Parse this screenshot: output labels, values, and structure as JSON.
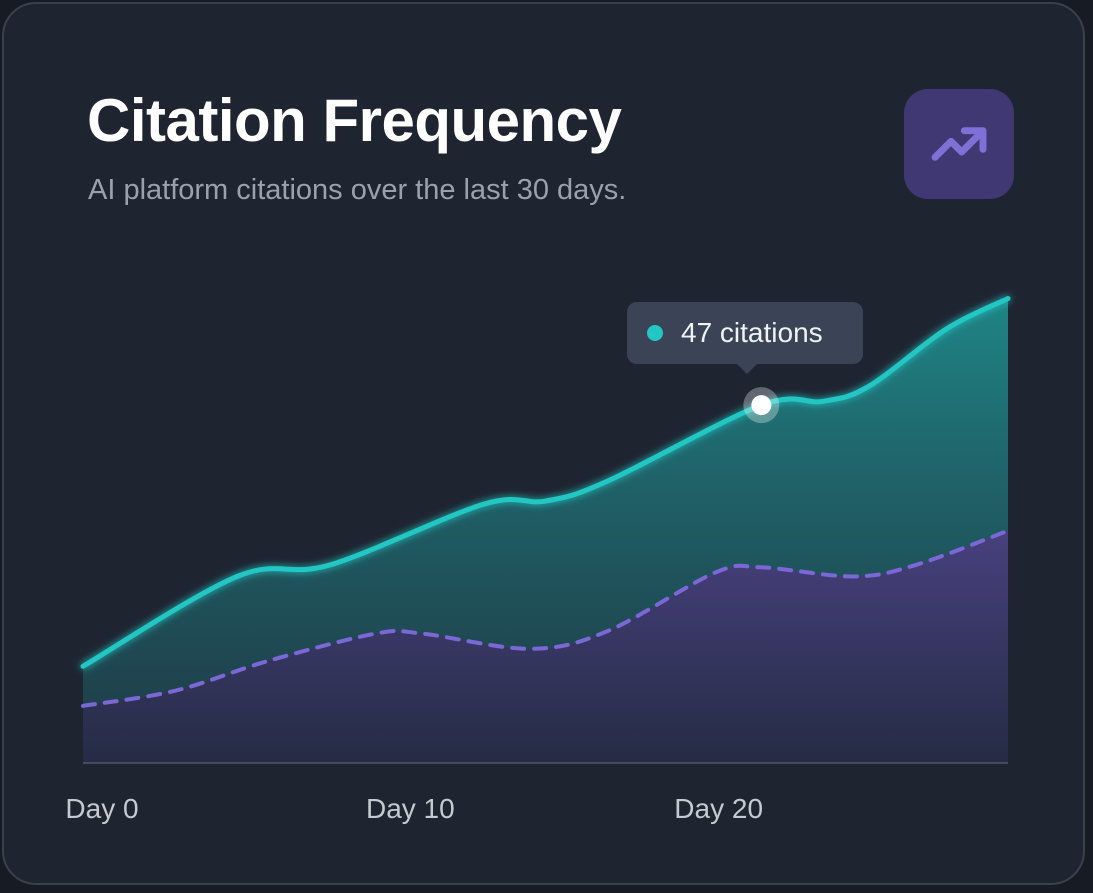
{
  "header": {
    "title": "Citation Frequency",
    "subtitle": "AI platform citations over the last 30 days.",
    "icon": "trending-up-icon"
  },
  "colors": {
    "primary": "#22c7c4",
    "secondary": "#7b68d6",
    "icon_bg": "#3f3873"
  },
  "tooltip": {
    "text": "47 citations",
    "day": 22,
    "value": 47
  },
  "chart_data": {
    "type": "area",
    "title": "Citation Frequency",
    "xlabel": "",
    "ylabel": "",
    "x_ticks": [
      {
        "value": 0,
        "label": "Day 0"
      },
      {
        "value": 10,
        "label": "Day 10"
      },
      {
        "value": 20,
        "label": "Day 20"
      }
    ],
    "xlim": [
      0,
      30
    ],
    "ylim": [
      0,
      70
    ],
    "grid": false,
    "series": [
      {
        "style": "solid",
        "color": "#22c7c4",
        "points": [
          [
            0,
            12.7
          ],
          [
            5,
            24.5
          ],
          [
            8,
            26
          ],
          [
            13,
            34
          ],
          [
            15,
            34.4
          ],
          [
            17,
            37
          ],
          [
            22,
            47
          ],
          [
            24,
            47.5
          ],
          [
            25.5,
            49.5
          ],
          [
            28,
            57
          ],
          [
            30,
            61
          ]
        ]
      },
      {
        "style": "dashed",
        "color": "#7b68d6",
        "points": [
          [
            0,
            7.5
          ],
          [
            3,
            9.5
          ],
          [
            6,
            13.4
          ],
          [
            9.5,
            17
          ],
          [
            11,
            17
          ],
          [
            14.5,
            15
          ],
          [
            17,
            17.3
          ],
          [
            20.5,
            25
          ],
          [
            22,
            25.7
          ],
          [
            25,
            24.5
          ],
          [
            27,
            26
          ],
          [
            30,
            30.5
          ]
        ]
      }
    ]
  }
}
